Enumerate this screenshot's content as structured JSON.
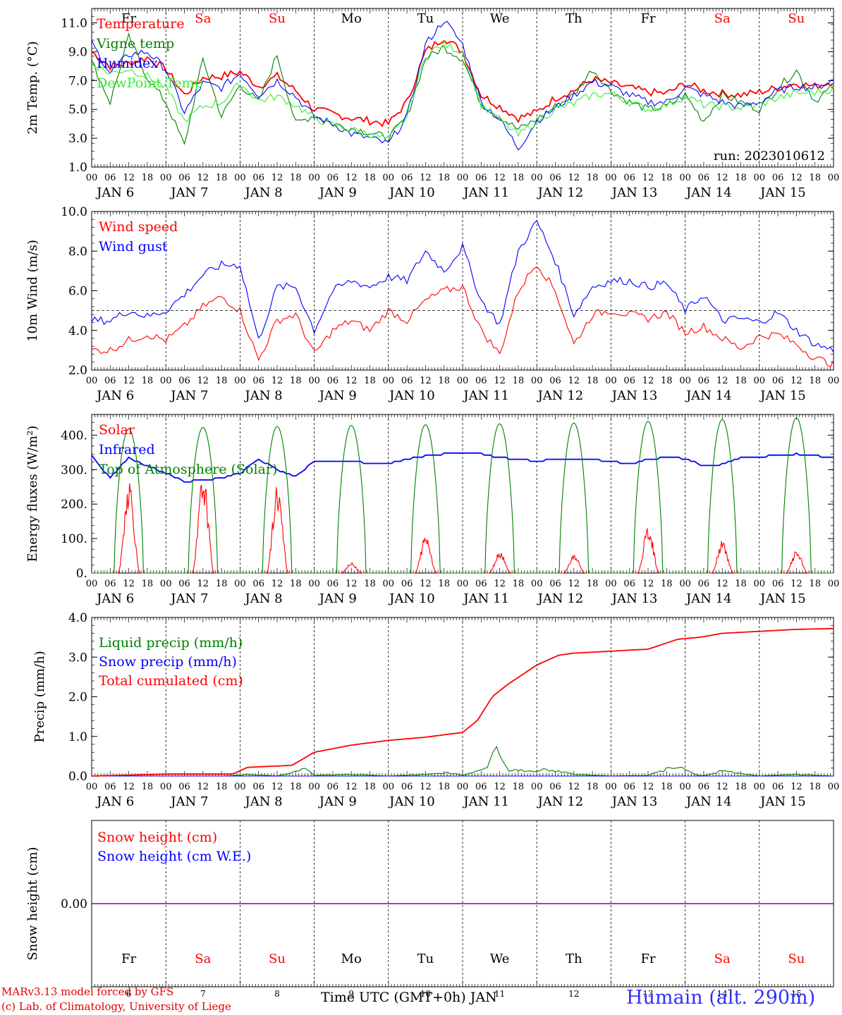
{
  "days": [
    "Fr",
    "Sa",
    "Su",
    "Mo",
    "Tu",
    "We",
    "Th",
    "Fr",
    "Sa",
    "Su"
  ],
  "day_colors": [
    "#000000",
    "#ff0000",
    "#ff0000",
    "#000000",
    "#000000",
    "#000000",
    "#000000",
    "#000000",
    "#ff0000",
    "#ff0000"
  ],
  "hour_labels": [
    "00",
    "06",
    "12",
    "18"
  ],
  "end_hour_label": "00",
  "date_labels": [
    "JAN   6",
    "JAN   7",
    "JAN   8",
    "JAN   9",
    "JAN  10",
    "JAN  11",
    "JAN  12",
    "JAN  13",
    "JAN  14",
    "JAN  15"
  ],
  "bottom_day_numbers": [
    "6",
    "7",
    "8",
    "9",
    "10",
    "11",
    "12",
    "13",
    "14",
    "15"
  ],
  "footer": {
    "credit_line1": "MARv3.13 model forced by GFS",
    "credit_line2": "(c) Lab. of Climatology, University of Liege",
    "x_axis_title": "Time UTC (GMT+0h) JAN",
    "station": "Humain (alt. 290m)"
  },
  "chart_data": [
    {
      "type": "line",
      "ylabel": "2m Temp. (°C)",
      "ylim": [
        1.0,
        12.0
      ],
      "yticks": [
        "1.0",
        "3.0",
        "5.0",
        "7.0",
        "9.0",
        "11.0"
      ],
      "annotation": "run: 2023010612",
      "x_unit": "days since Jan 6 00 UTC",
      "series": [
        {
          "name": "Temperature",
          "color": "#ff0000",
          "x": [
            0,
            0.25,
            0.5,
            0.75,
            1,
            1.25,
            1.5,
            1.75,
            2,
            2.25,
            2.5,
            2.75,
            3,
            3.25,
            3.5,
            3.75,
            4,
            4.25,
            4.5,
            4.75,
            5,
            5.25,
            5.5,
            5.75,
            6,
            6.25,
            6.5,
            6.75,
            7,
            7.25,
            7.5,
            7.75,
            8,
            8.25,
            8.5,
            8.75,
            9,
            9.25,
            9.5,
            9.75,
            10
          ],
          "values": [
            9.0,
            8.0,
            8.2,
            8.6,
            7.8,
            6.0,
            7.2,
            7.3,
            7.6,
            6.6,
            7.3,
            6.3,
            5.0,
            4.7,
            4.4,
            4.2,
            4.0,
            5.5,
            9.0,
            10.0,
            9.0,
            6.0,
            5.2,
            4.4,
            4.8,
            5.8,
            6.3,
            7.1,
            6.8,
            6.5,
            6.2,
            6.1,
            6.8,
            6.3,
            6.1,
            6.0,
            6.2,
            6.5,
            6.8,
            6.6,
            7.0
          ]
        },
        {
          "name": "Vigne temp",
          "color": "#008000",
          "x": [
            0,
            0.25,
            0.5,
            0.75,
            1,
            1.25,
            1.5,
            1.75,
            2,
            2.25,
            2.5,
            2.75,
            3,
            3.25,
            3.5,
            3.75,
            4,
            4.25,
            4.5,
            4.75,
            5,
            5.25,
            5.5,
            5.75,
            6,
            6.25,
            6.5,
            6.75,
            7,
            7.25,
            7.5,
            7.75,
            8,
            8.25,
            8.5,
            8.75,
            9,
            9.25,
            9.5,
            9.75,
            10
          ],
          "values": [
            8.3,
            5.5,
            10.0,
            7.2,
            5.5,
            2.5,
            8.5,
            4.5,
            6.7,
            5.5,
            8.8,
            4.0,
            4.6,
            4.0,
            3.7,
            3.4,
            3.0,
            4.5,
            8.5,
            9.3,
            8.5,
            5.4,
            4.5,
            3.6,
            4.3,
            5.2,
            6.0,
            7.8,
            6.3,
            5.5,
            5.0,
            5.2,
            6.0,
            4.2,
            6.0,
            5.5,
            5.0,
            6.5,
            7.7,
            5.6,
            6.6
          ]
        },
        {
          "name": "Humidex",
          "color": "#0000ff",
          "x": [
            0,
            0.25,
            0.5,
            0.75,
            1,
            1.25,
            1.5,
            1.75,
            2,
            2.25,
            2.5,
            2.75,
            3,
            3.25,
            3.5,
            3.75,
            4,
            4.25,
            4.5,
            4.75,
            5,
            5.25,
            5.5,
            5.75,
            6,
            6.25,
            6.5,
            6.75,
            7,
            7.25,
            7.5,
            7.75,
            8,
            8.25,
            8.5,
            8.75,
            9,
            9.25,
            9.5,
            9.75,
            10
          ],
          "values": [
            9.6,
            7.5,
            8.8,
            9.0,
            7.8,
            4.8,
            6.8,
            6.5,
            7.5,
            6.0,
            7.0,
            5.9,
            4.5,
            4.0,
            3.3,
            3.0,
            2.6,
            4.5,
            9.5,
            11.2,
            9.5,
            5.5,
            4.3,
            2.3,
            4.2,
            5.1,
            6.0,
            6.9,
            6.6,
            6.0,
            5.5,
            5.5,
            6.5,
            6.0,
            5.5,
            5.2,
            5.5,
            6.3,
            6.6,
            6.5,
            7.0
          ]
        },
        {
          "name": "DewPoint Temp",
          "color": "#33ee33",
          "x": [
            0,
            0.25,
            0.5,
            0.75,
            1,
            1.25,
            1.5,
            1.75,
            2,
            2.25,
            2.5,
            2.75,
            3,
            3.25,
            3.5,
            3.75,
            4,
            4.25,
            4.5,
            4.75,
            5,
            5.25,
            5.5,
            5.75,
            6,
            6.25,
            6.5,
            6.75,
            7,
            7.25,
            7.5,
            7.75,
            8,
            8.25,
            8.5,
            8.75,
            9,
            9.25,
            9.5,
            9.75,
            10
          ],
          "values": [
            8.2,
            7.5,
            7.8,
            7.3,
            6.5,
            4.2,
            5.2,
            5.5,
            6.8,
            5.6,
            5.9,
            5.3,
            4.4,
            3.9,
            3.6,
            3.3,
            2.9,
            4.5,
            8.8,
            9.5,
            9.0,
            5.3,
            4.3,
            3.2,
            4.2,
            5.0,
            5.4,
            6.0,
            6.1,
            5.5,
            5.0,
            5.3,
            5.9,
            5.3,
            5.2,
            5.1,
            5.3,
            5.8,
            6.1,
            6.2,
            6.4
          ]
        }
      ]
    },
    {
      "type": "line",
      "ylabel": "10m Wind (m/s)",
      "ylim": [
        2.0,
        10.0
      ],
      "yticks": [
        "2.0",
        "4.0",
        "6.0",
        "8.0",
        "10.0"
      ],
      "reference_line": 5.0,
      "x_unit": "days since Jan 6 00 UTC",
      "series": [
        {
          "name": "Wind speed",
          "color": "#ff0000",
          "x": [
            0,
            0.25,
            0.5,
            0.75,
            1,
            1.25,
            1.5,
            1.75,
            2,
            2.25,
            2.5,
            2.75,
            3,
            3.25,
            3.5,
            3.75,
            4,
            4.25,
            4.5,
            4.75,
            5,
            5.25,
            5.5,
            5.75,
            6,
            6.25,
            6.5,
            6.75,
            7,
            7.25,
            7.5,
            7.75,
            8,
            8.25,
            8.5,
            8.75,
            9,
            9.25,
            9.5,
            9.75,
            10
          ],
          "values": [
            3.0,
            3.0,
            3.5,
            3.8,
            3.5,
            4.2,
            5.2,
            5.7,
            5.0,
            2.5,
            4.5,
            4.8,
            2.8,
            4.0,
            4.5,
            4.0,
            5.0,
            4.5,
            5.5,
            6.0,
            6.2,
            4.0,
            2.8,
            6.0,
            7.4,
            6.0,
            3.3,
            4.8,
            5.0,
            4.8,
            4.6,
            4.9,
            3.9,
            4.2,
            3.6,
            3.1,
            3.7,
            3.8,
            3.3,
            2.6,
            2.3
          ]
        },
        {
          "name": "Wind gust",
          "color": "#0000ff",
          "x": [
            0,
            0.25,
            0.5,
            0.75,
            1,
            1.25,
            1.5,
            1.75,
            2,
            2.25,
            2.5,
            2.75,
            3,
            3.25,
            3.5,
            3.75,
            4,
            4.25,
            4.5,
            4.75,
            5,
            5.25,
            5.5,
            5.75,
            6,
            6.25,
            6.5,
            6.75,
            7,
            7.25,
            7.5,
            7.75,
            8,
            8.25,
            8.5,
            8.75,
            9,
            9.25,
            9.5,
            9.75,
            10
          ],
          "values": [
            4.5,
            4.5,
            5.0,
            4.7,
            5.0,
            5.8,
            6.8,
            7.3,
            7.3,
            3.5,
            6.2,
            6.2,
            4.0,
            6.0,
            6.5,
            6.2,
            6.7,
            6.5,
            8.0,
            7.0,
            8.2,
            5.5,
            4.3,
            8.0,
            9.5,
            7.5,
            4.8,
            6.2,
            6.5,
            6.5,
            6.2,
            6.4,
            5.0,
            5.8,
            4.5,
            4.6,
            4.4,
            4.9,
            4.0,
            3.3,
            3.0
          ]
        }
      ]
    },
    {
      "type": "line",
      "ylabel": "Energy fluxes (W/m²)",
      "ylim": [
        0,
        460
      ],
      "yticks": [
        "0.",
        "100.",
        "200.",
        "300.",
        "400."
      ],
      "x_unit": "days since Jan 6 00 UTC",
      "series": [
        {
          "name": "Solar",
          "color": "#ff0000",
          "daily_noon_peak": [
            235,
            245,
            220,
            25,
            95,
            55,
            45,
            115,
            80,
            55
          ],
          "daylight_hours": [
            8.4,
            15.8
          ]
        },
        {
          "name": "Infrared",
          "color": "#0000ff",
          "x": [
            0,
            0.25,
            0.5,
            0.75,
            1,
            1.25,
            1.5,
            1.75,
            2,
            2.25,
            2.5,
            2.75,
            3,
            3.25,
            3.5,
            3.75,
            4,
            4.25,
            4.5,
            4.75,
            5,
            5.25,
            5.5,
            5.75,
            6,
            6.25,
            6.5,
            6.75,
            7,
            7.25,
            7.5,
            7.75,
            8,
            8.25,
            8.5,
            8.75,
            9,
            9.25,
            9.5,
            9.75,
            10
          ],
          "values": [
            340,
            275,
            335,
            310,
            290,
            265,
            270,
            275,
            290,
            330,
            300,
            280,
            325,
            325,
            322,
            320,
            318,
            330,
            340,
            345,
            350,
            345,
            335,
            330,
            325,
            330,
            332,
            328,
            325,
            315,
            330,
            335,
            332,
            310,
            315,
            335,
            338,
            340,
            345,
            340,
            335
          ]
        },
        {
          "name": "Top of Atmosphere (Solar)",
          "color": "#008000",
          "daily_noon_peak": [
            418,
            422,
            425,
            428,
            430,
            433,
            435,
            440,
            445,
            450
          ],
          "daylight_hours": [
            7.3,
            16.7
          ]
        }
      ]
    },
    {
      "type": "line",
      "ylabel": "Precip (mm/h)",
      "ylim": [
        0,
        4.0
      ],
      "yticks": [
        "0.0",
        "1.0",
        "2.0",
        "3.0",
        "4.0"
      ],
      "x_unit": "days since Jan 6 00 UTC",
      "series": [
        {
          "name": "Liquid precip (mm/h)",
          "color": "#008000",
          "x": [
            0,
            1,
            1.8,
            2.1,
            2.5,
            2.9,
            3.0,
            3.5,
            4.0,
            4.5,
            4.8,
            5.0,
            5.3,
            5.45,
            5.6,
            6.0,
            6.2,
            6.5,
            7.0,
            7.5,
            7.9,
            8.2,
            8.5,
            9.0,
            9.5,
            10
          ],
          "values": [
            0,
            0,
            0,
            0.05,
            0,
            0.2,
            0.02,
            0.05,
            0,
            0.05,
            0.1,
            0.02,
            0.2,
            0.85,
            0.2,
            0.15,
            0.2,
            0.05,
            0,
            0.02,
            0.3,
            0,
            0.15,
            0,
            0.05,
            0
          ]
        },
        {
          "name": "Snow precip (mm/h)",
          "color": "#0000ff",
          "x": [
            0,
            10
          ],
          "values": [
            0,
            0
          ]
        },
        {
          "name": "Total cumulated (cm)",
          "color": "#ff0000",
          "x": [
            0,
            1,
            1.9,
            2.1,
            2.7,
            3.0,
            3.5,
            4.0,
            4.5,
            5.0,
            5.2,
            5.4,
            5.6,
            6.0,
            6.3,
            6.5,
            7.0,
            7.5,
            7.9,
            8.2,
            8.5,
            9.0,
            9.5,
            10
          ],
          "values": [
            0,
            0.05,
            0.05,
            0.22,
            0.27,
            0.6,
            0.78,
            0.9,
            0.98,
            1.1,
            1.4,
            2.0,
            2.3,
            2.8,
            3.05,
            3.1,
            3.15,
            3.2,
            3.45,
            3.5,
            3.6,
            3.65,
            3.7,
            3.72
          ]
        }
      ]
    },
    {
      "type": "line",
      "ylabel": "Snow height (cm)",
      "ylim": [
        -1,
        1
      ],
      "yticks": [
        "0.00"
      ],
      "x_unit": "days since Jan 6 00 UTC",
      "series": [
        {
          "name": "Snow height (cm)",
          "color": "#ff0000",
          "x": [
            0,
            10
          ],
          "values": [
            0,
            0
          ]
        },
        {
          "name": "Snow height (cm W.E.)",
          "color": "#0000ff",
          "x": [
            0,
            10
          ],
          "values": [
            0,
            0
          ]
        }
      ]
    }
  ]
}
